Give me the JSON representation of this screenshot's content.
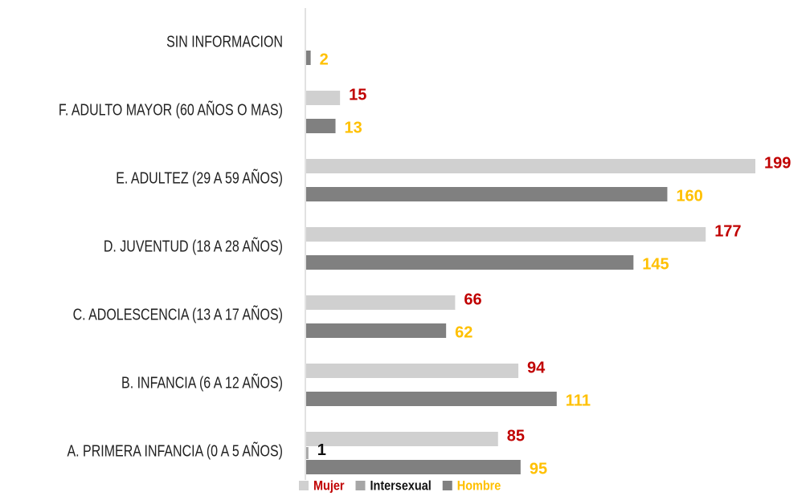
{
  "chart_data": {
    "type": "hbar",
    "categories": [
      "A. PRIMERA INFANCIA (0 A 5 AÑOS)",
      "B. INFANCIA (6 A 12 AÑOS)",
      "C. ADOLESCENCIA (13 A 17 AÑOS)",
      "D. JUVENTUD (18 A 28 AÑOS)",
      "E. ADULTEZ (29 A 59 AÑOS)",
      "F. ADULTO MAYOR (60 AÑOS O MAS)",
      "SIN INFORMACION"
    ],
    "series": [
      {
        "name": "Mujer",
        "color": "#d0d0d0",
        "label_color": "#c00000",
        "values": [
          85,
          94,
          66,
          177,
          199,
          15,
          null
        ]
      },
      {
        "name": "Intersexual",
        "color": "#a6a6a6",
        "label_color": "#111111",
        "values": [
          1,
          null,
          null,
          null,
          null,
          null,
          null
        ]
      },
      {
        "name": "Hombre",
        "color": "#808080",
        "label_color": "#ffc000",
        "values": [
          95,
          111,
          62,
          145,
          160,
          13,
          2
        ]
      }
    ],
    "legend": "bottom"
  }
}
